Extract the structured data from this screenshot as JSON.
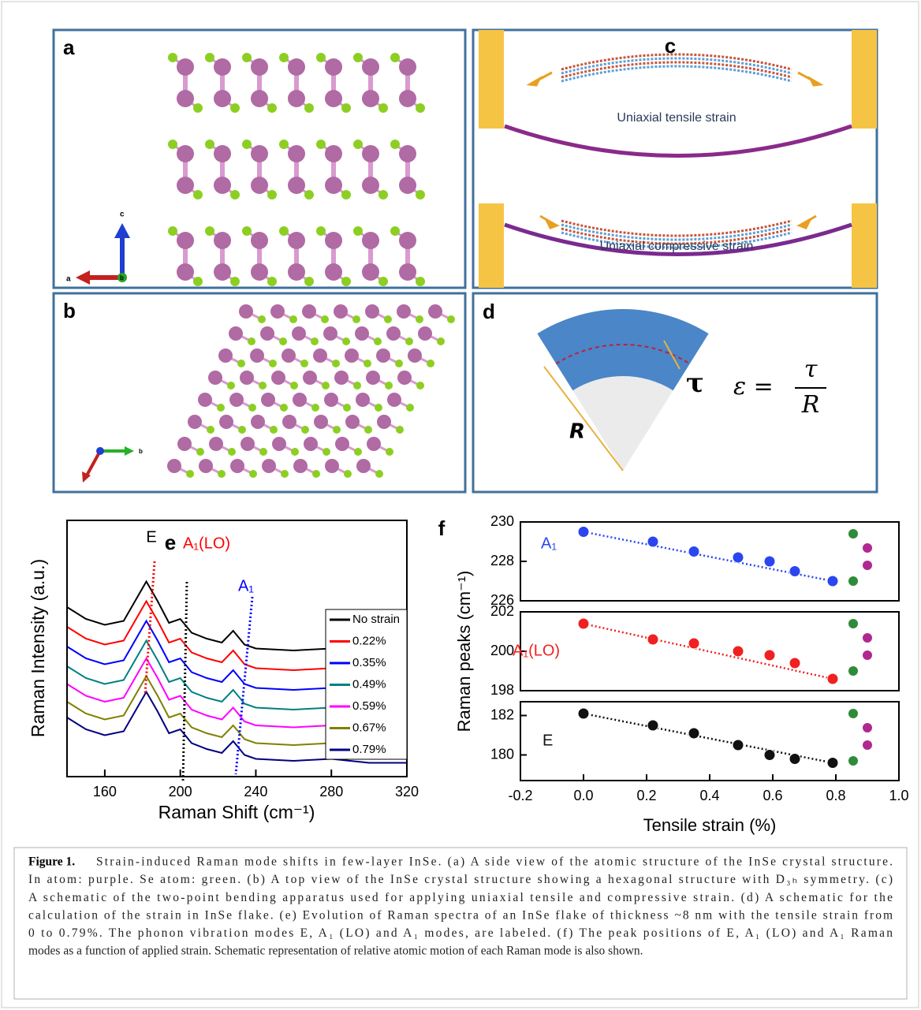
{
  "panels": {
    "a": {
      "label": "a",
      "axes": [
        "c",
        "a",
        "b"
      ]
    },
    "b": {
      "label": "b",
      "axes": [
        "b"
      ]
    },
    "c": {
      "label": "c",
      "texts": [
        "Uniaxial tensile strain",
        "Uniaxial compressive strain"
      ]
    },
    "d": {
      "label": "d",
      "radius": "R",
      "thickness": "τ",
      "equation": {
        "lhs": "ε =",
        "numerator": "τ",
        "denominator": "R"
      }
    }
  },
  "chart_data": [
    {
      "type": "line",
      "panel_label": "e",
      "xlabel": "Raman Shift (cm⁻¹)",
      "ylabel": "Raman Intensity (a.u.)",
      "x": [
        140,
        150,
        160,
        170,
        176,
        182,
        188,
        194,
        200,
        206,
        214,
        222,
        228,
        234,
        240,
        260,
        280,
        300,
        320
      ],
      "xlim": [
        140,
        320
      ],
      "xticks": [
        160,
        200,
        240,
        280,
        320
      ],
      "ylim": [
        0,
        13
      ],
      "annotations": [
        "E",
        "A₁(LO)",
        "A₁"
      ],
      "series": [
        {
          "name": "No strain",
          "color": "#000000",
          "values": [
            8.6,
            8.0,
            7.7,
            7.9,
            8.9,
            9.9,
            8.9,
            7.8,
            8.0,
            7.3,
            7.0,
            6.8,
            7.4,
            6.7,
            6.5,
            6.4,
            6.5,
            6.3,
            6.3
          ]
        },
        {
          "name": "0.22%",
          "color": "#ff0000",
          "values": [
            7.6,
            7.0,
            6.7,
            6.9,
            7.9,
            8.9,
            7.9,
            6.8,
            7.0,
            6.3,
            6.0,
            5.8,
            6.4,
            5.7,
            5.5,
            5.4,
            5.5,
            5.3,
            5.3
          ]
        },
        {
          "name": "0.35%",
          "color": "#0000ff",
          "values": [
            6.6,
            6.0,
            5.7,
            5.9,
            6.9,
            7.9,
            6.9,
            5.8,
            6.0,
            5.3,
            5.0,
            4.8,
            5.4,
            4.7,
            4.5,
            4.4,
            4.5,
            4.3,
            4.3
          ]
        },
        {
          "name": "0.49%",
          "color": "#008080",
          "values": [
            5.6,
            5.0,
            4.7,
            4.9,
            5.9,
            6.9,
            5.9,
            4.8,
            5.0,
            4.3,
            4.0,
            3.8,
            4.4,
            3.7,
            3.5,
            3.4,
            3.5,
            3.3,
            3.3
          ]
        },
        {
          "name": "0.59%",
          "color": "#ff00ff",
          "values": [
            4.7,
            4.1,
            3.8,
            4.0,
            5.0,
            6.0,
            5.0,
            3.9,
            4.1,
            3.4,
            3.1,
            2.9,
            3.5,
            2.8,
            2.6,
            2.5,
            2.6,
            2.4,
            2.4
          ]
        },
        {
          "name": "0.67%",
          "color": "#808000",
          "values": [
            3.8,
            3.2,
            2.9,
            3.1,
            4.1,
            5.1,
            4.1,
            3.0,
            3.2,
            2.5,
            2.2,
            2.0,
            2.6,
            1.9,
            1.7,
            1.6,
            1.7,
            1.5,
            1.5
          ]
        },
        {
          "name": "0.79%",
          "color": "#000080",
          "values": [
            3.0,
            2.4,
            2.1,
            2.3,
            3.3,
            4.3,
            3.3,
            2.2,
            2.4,
            1.7,
            1.4,
            1.2,
            1.8,
            1.1,
            0.9,
            0.8,
            0.9,
            0.7,
            0.7
          ]
        }
      ]
    },
    {
      "type": "scatter",
      "panel_label": "f",
      "xlabel": "Tensile strain (%)",
      "ylabel": "Raman peaks (cm⁻¹)",
      "x": [
        0,
        0.22,
        0.35,
        0.49,
        0.59,
        0.67,
        0.79
      ],
      "xlim": [
        -0.2,
        1.0
      ],
      "xticks": [
        -0.2,
        {
          "value": 0,
          "label": "0.0"
        },
        0.2,
        0.4,
        0.6,
        0.8,
        {
          "value": 1,
          "label": "1.0"
        }
      ],
      "panels": [
        {
          "name": "A₁",
          "color": "#2b45f0",
          "values": [
            229.5,
            229.0,
            228.5,
            228.2,
            228.0,
            227.5,
            227.0
          ],
          "ylim": [
            226,
            230
          ],
          "yticks": [
            226,
            228,
            230
          ]
        },
        {
          "name": "A₁(LO)",
          "color": "#f02020",
          "values": [
            201.4,
            200.6,
            200.4,
            200.0,
            199.8,
            199.4,
            198.6
          ],
          "ylim": [
            198,
            202
          ],
          "yticks": [
            198,
            200,
            202
          ]
        },
        {
          "name": "E",
          "color": "#111111",
          "values": [
            182.1,
            181.5,
            181.1,
            180.5,
            180.0,
            179.8,
            179.6
          ],
          "ylim": [
            178.7,
            182.7
          ],
          "yticks": [
            180,
            182
          ]
        }
      ]
    }
  ],
  "caption": {
    "label": "Figure 1.",
    "lines": [
      "Strain-induced Raman mode shifts in few-layer InSe. (a) A side view of the atomic structure of the InSe crystal structure.",
      "In atom: purple. Se atom: green. (b) A top view of the InSe crystal structure showing a hexagonal structure with D₃ₕ symmetry. (c)",
      "A schematic of the two-point bending apparatus used for applying uniaxial tensile and compressive strain. (d) A schematic for the",
      "calculation of the strain in InSe flake. (e) Evolution of Raman spectra of an InSe flake of thickness ~8 nm with the tensile strain from",
      "0 to 0.79%. The phonon vibration modes E, A₁ (LO) and A₁ modes, are labeled. (f) The peak positions of E, A₁ (LO) and A₁ Raman",
      "modes as a function of applied strain. Schematic representation of relative atomic motion of each Raman mode is also shown."
    ]
  }
}
